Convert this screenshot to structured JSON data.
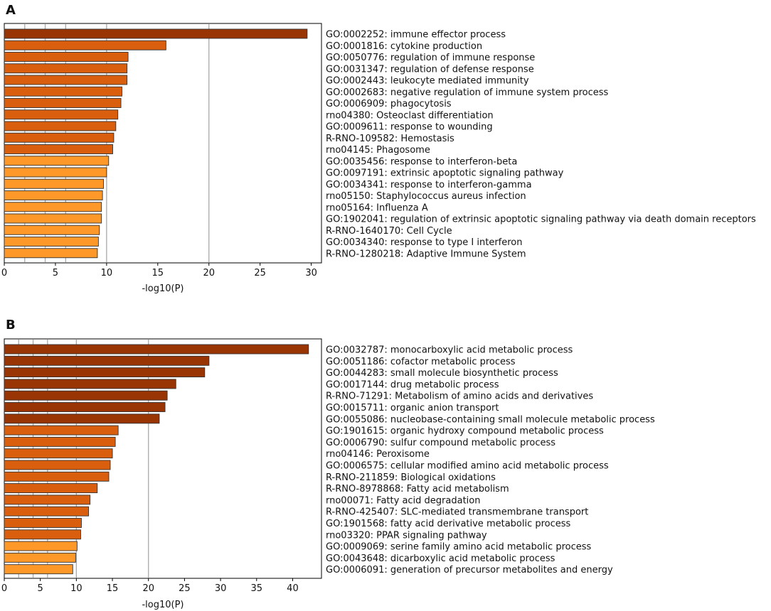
{
  "figure": {
    "panels": [
      "A",
      "B"
    ]
  },
  "chart_data": [
    {
      "panel": "A",
      "type": "bar",
      "orientation": "horizontal",
      "xlabel": "-log10(P)",
      "xlim": [
        0,
        31
      ],
      "xticks": [
        0,
        5,
        10,
        15,
        20,
        25,
        30
      ],
      "xtick_labels": [
        "0",
        "5",
        "10",
        "15",
        "20",
        "25",
        "30"
      ],
      "vertical_reference_lines": [
        2,
        4,
        6,
        10,
        20
      ],
      "categories": [
        "GO:0002252: immune effector process",
        "GO:0001816: cytokine production",
        "GO:0050776: regulation of immune response",
        "GO:0031347: regulation of defense response",
        "GO:0002443: leukocyte mediated immunity",
        "GO:0002683: negative regulation of immune system process",
        "GO:0006909: phagocytosis",
        "rno04380: Osteoclast differentiation",
        "GO:0009611: response to wounding",
        "R-RNO-109582: Hemostasis",
        "rno04145: Phagosome",
        "GO:0035456: response to interferon-beta",
        "GO:0097191: extrinsic apoptotic signaling pathway",
        "GO:0034341: response to interferon-gamma",
        "rno05150: Staphylococcus aureus infection",
        "rno05164: Influenza A",
        "GO:1902041: regulation of extrinsic apoptotic signaling pathway via death domain receptors",
        "R-RNO-1640170: Cell Cycle",
        "GO:0034340: response to type I interferon",
        "R-RNO-1280218: Adaptive Immune System"
      ],
      "values": [
        29.6,
        15.8,
        12.1,
        12.0,
        12.0,
        11.5,
        11.4,
        11.1,
        10.9,
        10.7,
        10.6,
        10.2,
        10.0,
        9.7,
        9.6,
        9.5,
        9.5,
        9.3,
        9.2,
        9.1
      ],
      "bar_colors": [
        "#993404",
        "#d95f0e",
        "#d95f0e",
        "#d95f0e",
        "#d95f0e",
        "#d95f0e",
        "#d95f0e",
        "#d95f0e",
        "#d95f0e",
        "#d95f0e",
        "#d95f0e",
        "#fe9929",
        "#fe9929",
        "#fe9929",
        "#fe9929",
        "#fe9929",
        "#fe9929",
        "#fe9929",
        "#fe9929",
        "#fe9929"
      ]
    },
    {
      "panel": "B",
      "type": "bar",
      "orientation": "horizontal",
      "xlabel": "-log10(P)",
      "xlim": [
        0,
        44
      ],
      "xticks": [
        0,
        5,
        10,
        15,
        20,
        25,
        30,
        35,
        40
      ],
      "xtick_labels": [
        "0",
        "5",
        "10",
        "15",
        "20",
        "25",
        "30",
        "35",
        "40"
      ],
      "vertical_reference_lines": [
        2,
        4,
        6,
        10,
        20
      ],
      "categories": [
        "GO:0032787: monocarboxylic acid metabolic process",
        "GO:0051186: cofactor metabolic process",
        "GO:0044283: small molecule biosynthetic process",
        "GO:0017144: drug metabolic process",
        "R-RNO-71291: Metabolism of amino acids and derivatives",
        "GO:0015711: organic anion transport",
        "GO:0055086: nucleobase-containing small molecule metabolic process",
        "GO:1901615: organic hydroxy compound metabolic process",
        "GO:0006790: sulfur compound metabolic process",
        "rno04146: Peroxisome",
        "GO:0006575: cellular modified amino acid metabolic process",
        "R-RNO-211859: Biological oxidations",
        "R-RNO-8978868: Fatty acid metabolism",
        "rno00071: Fatty acid degradation",
        "R-RNO-425407: SLC-mediated transmembrane transport",
        "GO:1901568: fatty acid derivative metabolic process",
        "rno03320: PPAR signaling pathway",
        "GO:0009069: serine family amino acid metabolic process",
        "GO:0043648: dicarboxylic acid metabolic process",
        "GO:0006091: generation of precursor metabolites and energy"
      ],
      "values": [
        42.2,
        28.4,
        27.8,
        23.8,
        22.6,
        22.3,
        21.5,
        15.8,
        15.4,
        15.0,
        14.7,
        14.5,
        12.9,
        11.9,
        11.7,
        10.7,
        10.6,
        10.1,
        9.9,
        9.5
      ],
      "bar_colors": [
        "#993404",
        "#993404",
        "#993404",
        "#993404",
        "#993404",
        "#993404",
        "#993404",
        "#d95f0e",
        "#d95f0e",
        "#d95f0e",
        "#d95f0e",
        "#d95f0e",
        "#d95f0e",
        "#d95f0e",
        "#d95f0e",
        "#d95f0e",
        "#d95f0e",
        "#fe9929",
        "#fe9929",
        "#fe9929"
      ]
    }
  ]
}
